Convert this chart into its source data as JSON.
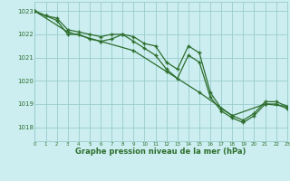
{
  "title": "Graphe pression niveau de la mer (hPa)",
  "bg_color": "#cceef0",
  "grid_color": "#99cccc",
  "line_color": "#2d6e2d",
  "xlim": [
    0,
    23
  ],
  "ylim": [
    1017.4,
    1023.4
  ],
  "yticks": [
    1018,
    1019,
    1020,
    1021,
    1022,
    1023
  ],
  "xticks": [
    0,
    1,
    2,
    3,
    4,
    5,
    6,
    7,
    8,
    9,
    10,
    11,
    12,
    13,
    14,
    15,
    16,
    17,
    18,
    19,
    20,
    21,
    22,
    23
  ],
  "series": [
    {
      "x": [
        0,
        1,
        2,
        3,
        4,
        5,
        6,
        7,
        8,
        9,
        10,
        11,
        12,
        13,
        14,
        15,
        16,
        17,
        18,
        19,
        20,
        21,
        22,
        23
      ],
      "y": [
        1023.0,
        1022.8,
        1022.7,
        1022.2,
        1022.1,
        1022.0,
        1021.9,
        1022.0,
        1022.0,
        1021.9,
        1021.6,
        1021.5,
        1020.8,
        1020.5,
        1021.5,
        1021.2,
        1019.5,
        1018.8,
        1018.5,
        1018.3,
        1018.6,
        1019.1,
        1019.1,
        1018.9
      ]
    },
    {
      "x": [
        0,
        1,
        2,
        3,
        4,
        5,
        6,
        7,
        8,
        9,
        10,
        11,
        12,
        13,
        14,
        15,
        16,
        17,
        18,
        19,
        20,
        21,
        22,
        23
      ],
      "y": [
        1023.0,
        1022.8,
        1022.6,
        1022.0,
        1022.0,
        1021.8,
        1021.7,
        1021.8,
        1022.0,
        1021.7,
        1021.4,
        1021.1,
        1020.5,
        1020.1,
        1021.1,
        1020.8,
        1019.3,
        1018.7,
        1018.4,
        1018.2,
        1018.5,
        1019.0,
        1019.0,
        1018.8
      ]
    },
    {
      "x": [
        0,
        3,
        6,
        9,
        12,
        15,
        18,
        21,
        23
      ],
      "y": [
        1023.0,
        1022.1,
        1021.7,
        1021.3,
        1020.4,
        1019.5,
        1018.5,
        1019.0,
        1018.9
      ]
    }
  ]
}
